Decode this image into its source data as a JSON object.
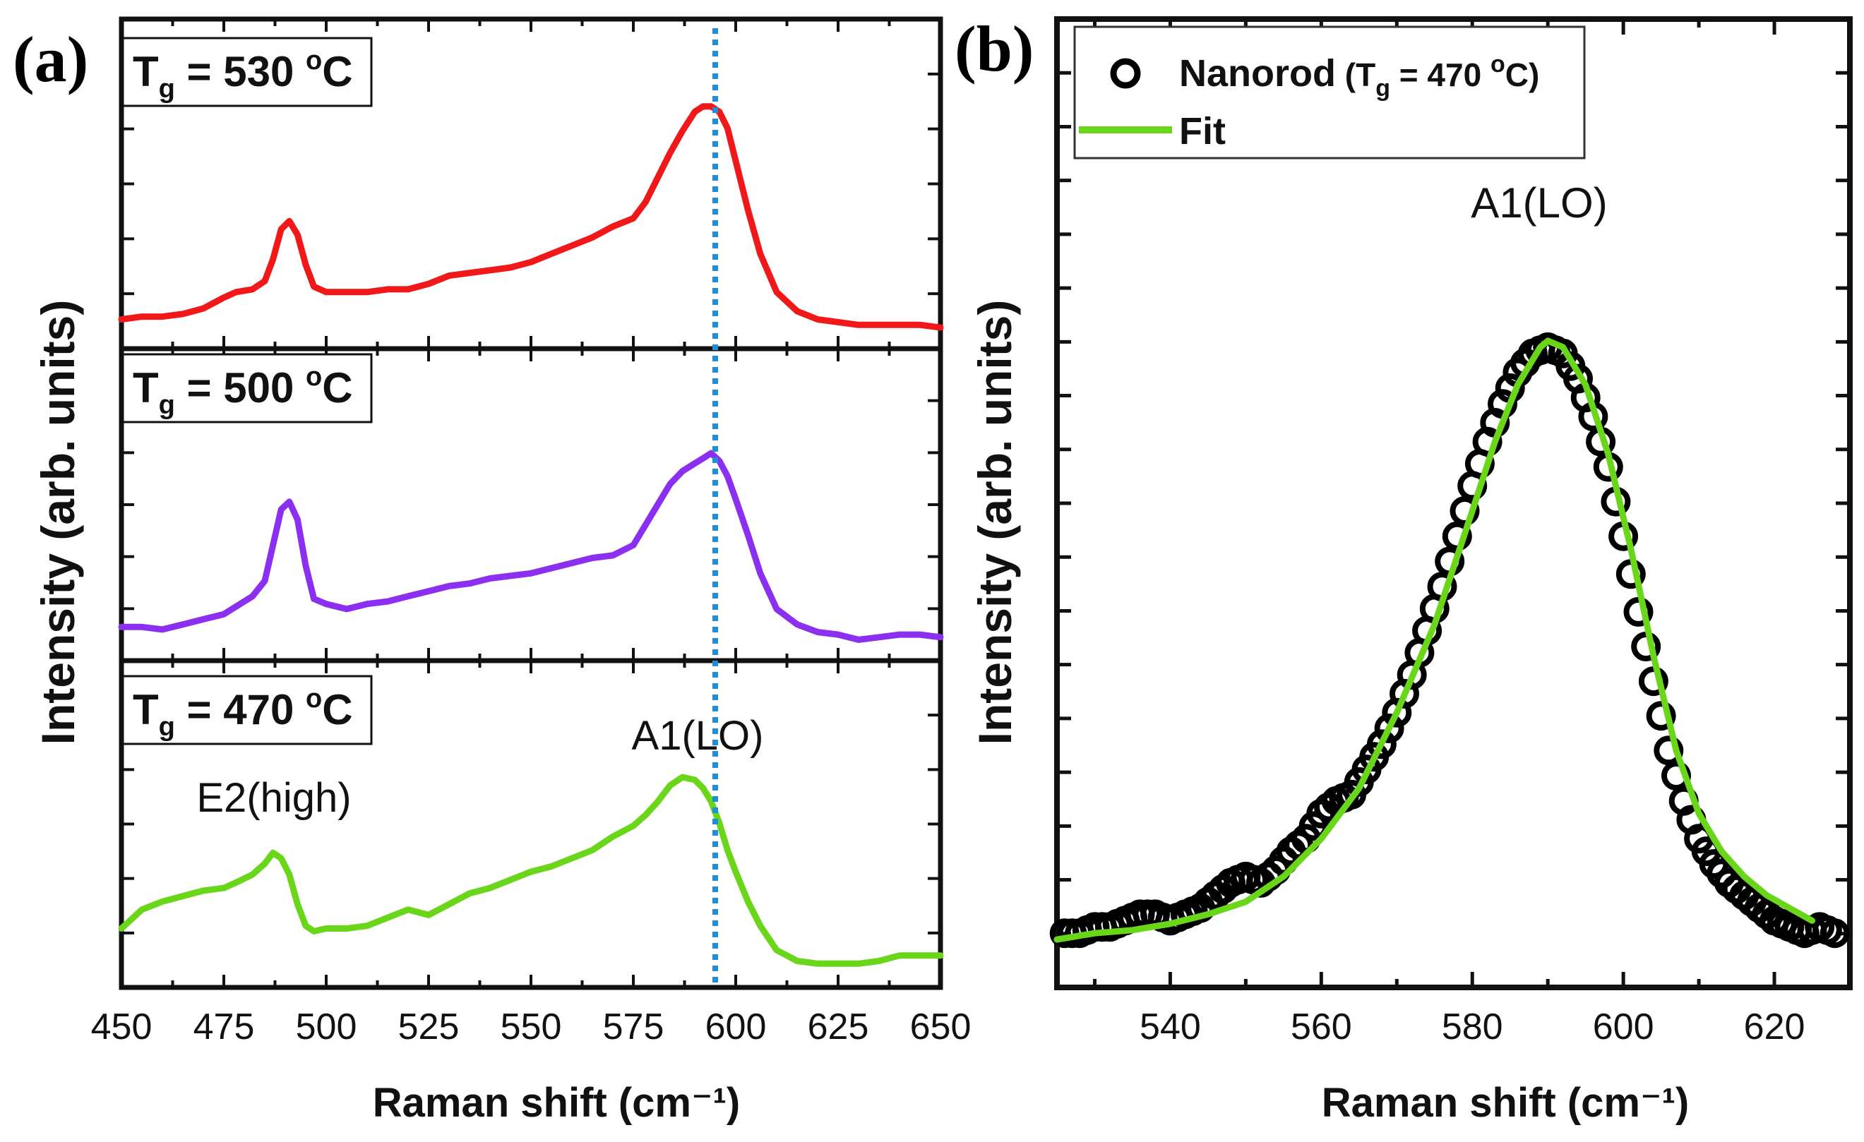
{
  "chart_data": [
    {
      "panel_label": "(a)",
      "type": "line",
      "title": "",
      "xlabel": "Raman shift (cm⁻¹)",
      "ylabel": "Intensity (arb. units)",
      "xlim": [
        450,
        650
      ],
      "ylim": [
        0,
        1
      ],
      "xticks": [
        450,
        475,
        500,
        525,
        550,
        575,
        600,
        625,
        650
      ],
      "xtick_labels": [
        "450",
        "475",
        "500",
        "525",
        "550",
        "575",
        "600",
        "625",
        "650"
      ],
      "reference_line": {
        "x": 595,
        "style": "dotted",
        "color": "#1f8fd6"
      },
      "annotations": [
        {
          "text": "E2(high)",
          "near_x": 487
        },
        {
          "text": "A1(LO)",
          "near_x": 589
        }
      ],
      "subplots": [
        {
          "label_main": "T",
          "label_sub": "g",
          "label_value": " = 530 ",
          "label_sup": "o",
          "label_unit": "C",
          "color": "#f01818",
          "x": [
            450,
            455,
            460,
            465,
            470,
            475,
            478,
            482,
            485,
            487,
            489,
            491,
            493,
            495,
            497,
            500,
            505,
            510,
            515,
            520,
            525,
            530,
            535,
            540,
            545,
            550,
            555,
            560,
            565,
            570,
            575,
            578,
            581,
            584,
            587,
            590,
            592,
            594,
            596,
            598,
            600,
            603,
            606,
            610,
            615,
            620,
            625,
            630,
            635,
            640,
            645,
            650
          ],
          "y": [
            0.04,
            0.05,
            0.05,
            0.06,
            0.08,
            0.12,
            0.14,
            0.15,
            0.18,
            0.26,
            0.37,
            0.4,
            0.35,
            0.24,
            0.16,
            0.14,
            0.14,
            0.14,
            0.15,
            0.15,
            0.17,
            0.2,
            0.21,
            0.22,
            0.23,
            0.25,
            0.28,
            0.31,
            0.34,
            0.38,
            0.41,
            0.47,
            0.56,
            0.65,
            0.73,
            0.8,
            0.82,
            0.82,
            0.8,
            0.74,
            0.62,
            0.44,
            0.28,
            0.14,
            0.07,
            0.04,
            0.03,
            0.02,
            0.02,
            0.02,
            0.02,
            0.01
          ]
        },
        {
          "label_main": "T",
          "label_sub": "g",
          "label_value": " = 500 ",
          "label_sup": "o",
          "label_unit": "C",
          "color": "#8b2ff0",
          "x": [
            450,
            455,
            460,
            465,
            470,
            475,
            478,
            482,
            485,
            487,
            489,
            491,
            493,
            495,
            497,
            500,
            505,
            510,
            515,
            520,
            525,
            530,
            535,
            540,
            545,
            550,
            555,
            560,
            565,
            570,
            575,
            578,
            581,
            584,
            587,
            590,
            592,
            594,
            596,
            598,
            600,
            603,
            606,
            610,
            615,
            620,
            625,
            630,
            635,
            640,
            645,
            650
          ],
          "y": [
            0.06,
            0.06,
            0.05,
            0.07,
            0.09,
            0.11,
            0.14,
            0.18,
            0.24,
            0.38,
            0.52,
            0.55,
            0.48,
            0.3,
            0.17,
            0.15,
            0.13,
            0.15,
            0.16,
            0.18,
            0.2,
            0.22,
            0.23,
            0.25,
            0.26,
            0.27,
            0.29,
            0.31,
            0.33,
            0.34,
            0.38,
            0.46,
            0.54,
            0.62,
            0.67,
            0.7,
            0.72,
            0.74,
            0.71,
            0.65,
            0.56,
            0.42,
            0.27,
            0.13,
            0.07,
            0.04,
            0.03,
            0.01,
            0.02,
            0.03,
            0.03,
            0.02
          ]
        },
        {
          "label_main": "T",
          "label_sub": "g",
          "label_value": " = 470 ",
          "label_sup": "o",
          "label_unit": "C",
          "color": "#6ad61a",
          "x": [
            450,
            455,
            460,
            465,
            470,
            475,
            478,
            482,
            485,
            487,
            489,
            491,
            493,
            495,
            497,
            500,
            505,
            510,
            515,
            520,
            525,
            530,
            535,
            540,
            545,
            550,
            555,
            560,
            565,
            570,
            575,
            578,
            581,
            584,
            587,
            590,
            592,
            594,
            596,
            598,
            600,
            603,
            606,
            610,
            615,
            620,
            625,
            630,
            635,
            640,
            645,
            650
          ],
          "y": [
            0.15,
            0.22,
            0.25,
            0.27,
            0.29,
            0.3,
            0.32,
            0.35,
            0.39,
            0.43,
            0.41,
            0.35,
            0.24,
            0.16,
            0.14,
            0.15,
            0.15,
            0.16,
            0.19,
            0.22,
            0.2,
            0.24,
            0.28,
            0.3,
            0.33,
            0.36,
            0.38,
            0.41,
            0.44,
            0.49,
            0.53,
            0.57,
            0.62,
            0.68,
            0.71,
            0.7,
            0.67,
            0.62,
            0.54,
            0.44,
            0.36,
            0.25,
            0.16,
            0.07,
            0.03,
            0.02,
            0.02,
            0.02,
            0.03,
            0.05,
            0.05,
            0.05
          ]
        }
      ]
    },
    {
      "panel_label": "(b)",
      "type": "line",
      "title": "",
      "xlabel": "Raman shift (cm⁻¹)",
      "ylabel": "Intensity (arb. units)",
      "xlim": [
        525,
        630
      ],
      "ylim": [
        0,
        1.12
      ],
      "xticks": [
        540,
        560,
        580,
        600,
        620
      ],
      "xtick_labels": [
        "540",
        "560",
        "580",
        "600",
        "620"
      ],
      "annotations": [
        {
          "text": "A1(LO)",
          "near_x": 589
        }
      ],
      "legend": {
        "position": "top-left",
        "marker_entry": {
          "name": "Nanorod",
          "paren_open": " (T",
          "sub": "g",
          "value": " = 470 ",
          "sup": "o",
          "unit": "C)"
        },
        "line_entry": {
          "name": "Fit"
        }
      },
      "series": [
        {
          "name": "Nanorod",
          "style": "open-circle-markers",
          "color": "#000000",
          "x": [
            526,
            528,
            530,
            532,
            534,
            536,
            538,
            540,
            542,
            544,
            546,
            548,
            550,
            552,
            554,
            556,
            558,
            560,
            562,
            564,
            566,
            568,
            570,
            572,
            574,
            576,
            578,
            580,
            582,
            584,
            586,
            588,
            590,
            592,
            594,
            596,
            598,
            600,
            602,
            604,
            606,
            608,
            610,
            612,
            614,
            616,
            618,
            620,
            622,
            624,
            626,
            628
          ],
          "y": [
            0.03,
            0.03,
            0.04,
            0.04,
            0.05,
            0.06,
            0.06,
            0.05,
            0.06,
            0.07,
            0.09,
            0.11,
            0.12,
            0.11,
            0.13,
            0.16,
            0.18,
            0.22,
            0.24,
            0.25,
            0.29,
            0.33,
            0.38,
            0.44,
            0.51,
            0.58,
            0.66,
            0.74,
            0.81,
            0.87,
            0.92,
            0.95,
            0.96,
            0.95,
            0.91,
            0.85,
            0.77,
            0.66,
            0.54,
            0.43,
            0.32,
            0.24,
            0.18,
            0.14,
            0.11,
            0.09,
            0.07,
            0.05,
            0.04,
            0.03,
            0.04,
            0.03
          ]
        },
        {
          "name": "Fit",
          "style": "line",
          "color": "#6ad61a",
          "x": [
            525,
            530,
            535,
            540,
            545,
            550,
            555,
            560,
            565,
            570,
            575,
            580,
            583,
            586,
            589,
            590,
            592,
            595,
            598,
            601,
            604,
            607,
            610,
            613,
            616,
            619,
            622,
            625
          ],
          "y": [
            0.02,
            0.03,
            0.035,
            0.045,
            0.06,
            0.08,
            0.12,
            0.18,
            0.26,
            0.38,
            0.52,
            0.7,
            0.81,
            0.9,
            0.96,
            0.97,
            0.96,
            0.9,
            0.79,
            0.64,
            0.47,
            0.32,
            0.22,
            0.16,
            0.12,
            0.09,
            0.07,
            0.05
          ]
        }
      ]
    }
  ]
}
